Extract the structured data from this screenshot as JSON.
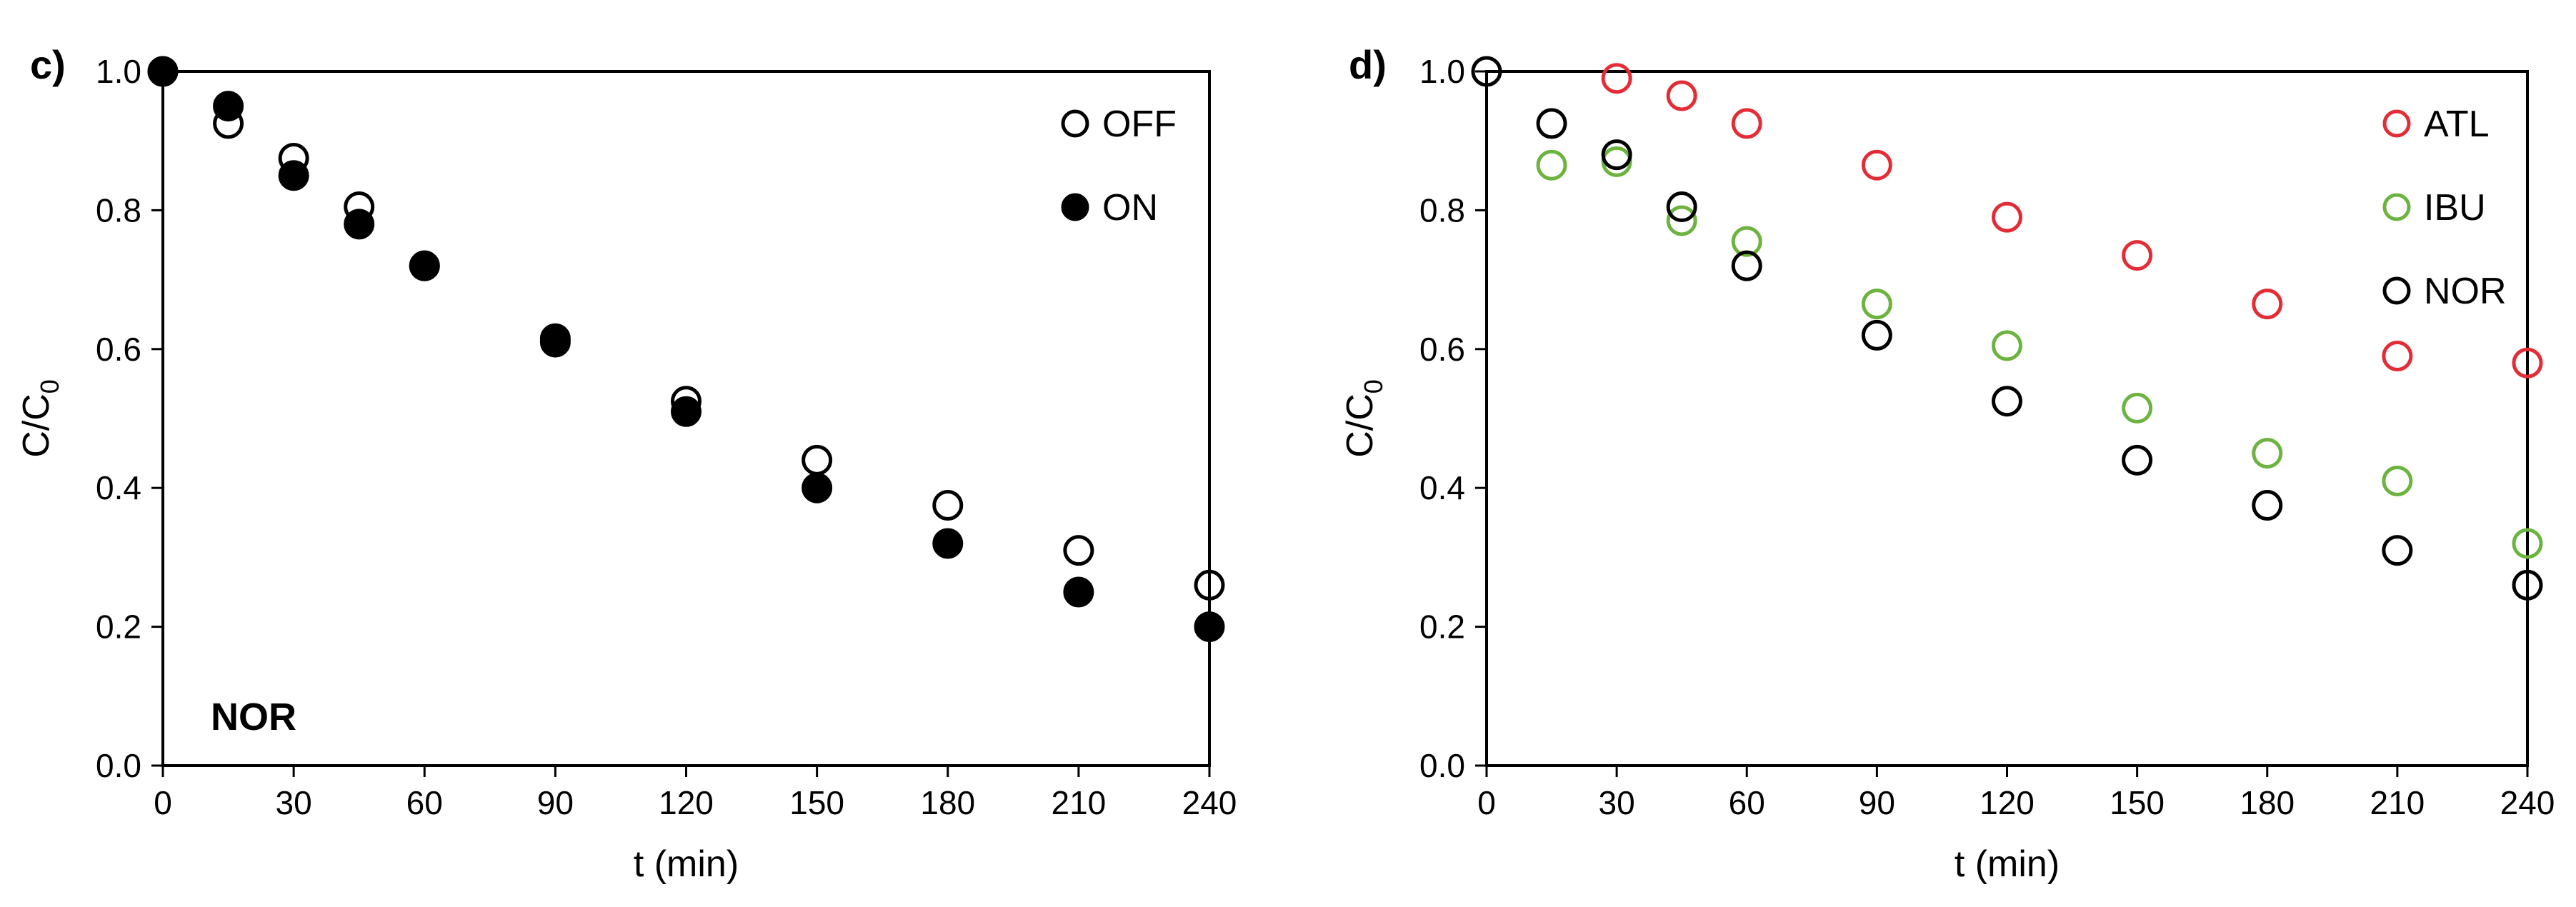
{
  "chart_data": [
    {
      "type": "scatter",
      "panel_label": "c)",
      "annotation": "NOR",
      "xlabel": "t (min)",
      "ylabel_main": "C/C",
      "ylabel_sub": "0",
      "xlim": [
        0,
        240
      ],
      "ylim": [
        0.0,
        1.0
      ],
      "xticks": [
        "0",
        "30",
        "60",
        "90",
        "120",
        "150",
        "180",
        "210",
        "240"
      ],
      "yticks": [
        "0.0",
        "0.2",
        "0.4",
        "0.6",
        "0.8",
        "1.0"
      ],
      "grid": false,
      "legend_position": "top-right",
      "series": [
        {
          "name": "OFF",
          "marker": "open-circle",
          "color": "#000000",
          "points": [
            [
              0,
              1.0
            ],
            [
              15,
              0.925
            ],
            [
              30,
              0.875
            ],
            [
              45,
              0.805
            ],
            [
              60,
              0.72
            ],
            [
              90,
              0.615
            ],
            [
              120,
              0.525
            ],
            [
              150,
              0.44
            ],
            [
              180,
              0.375
            ],
            [
              210,
              0.31
            ],
            [
              240,
              0.26
            ]
          ]
        },
        {
          "name": "ON",
          "marker": "filled-circle",
          "color": "#000000",
          "points": [
            [
              0,
              1.0
            ],
            [
              15,
              0.95
            ],
            [
              30,
              0.85
            ],
            [
              45,
              0.78
            ],
            [
              60,
              0.72
            ],
            [
              90,
              0.61
            ],
            [
              120,
              0.51
            ],
            [
              150,
              0.4
            ],
            [
              180,
              0.32
            ],
            [
              210,
              0.25
            ],
            [
              240,
              0.2
            ]
          ]
        }
      ]
    },
    {
      "type": "scatter",
      "panel_label": "d)",
      "xlabel": "t (min)",
      "ylabel_main": "C/C",
      "ylabel_sub": "0",
      "xlim": [
        0,
        240
      ],
      "ylim": [
        0.0,
        1.0
      ],
      "xticks": [
        "0",
        "30",
        "60",
        "90",
        "120",
        "150",
        "180",
        "210",
        "240"
      ],
      "yticks": [
        "0.0",
        "0.2",
        "0.4",
        "0.6",
        "0.8",
        "1.0"
      ],
      "grid": false,
      "legend_position": "top-right",
      "series": [
        {
          "name": "ATL",
          "marker": "open-circle",
          "color": "#e32c35",
          "points": [
            [
              30,
              0.99
            ],
            [
              45,
              0.965
            ],
            [
              60,
              0.925
            ],
            [
              90,
              0.865
            ],
            [
              120,
              0.79
            ],
            [
              150,
              0.735
            ],
            [
              180,
              0.665
            ],
            [
              210,
              0.59
            ],
            [
              240,
              0.58
            ]
          ]
        },
        {
          "name": "IBU",
          "marker": "open-circle",
          "color": "#6cb33f",
          "points": [
            [
              15,
              0.865
            ],
            [
              30,
              0.87
            ],
            [
              45,
              0.785
            ],
            [
              60,
              0.755
            ],
            [
              90,
              0.665
            ],
            [
              120,
              0.605
            ],
            [
              150,
              0.515
            ],
            [
              180,
              0.45
            ],
            [
              210,
              0.41
            ],
            [
              240,
              0.32
            ]
          ]
        },
        {
          "name": "NOR",
          "marker": "open-circle",
          "color": "#000000",
          "points": [
            [
              0,
              1.0
            ],
            [
              15,
              0.925
            ],
            [
              30,
              0.88
            ],
            [
              45,
              0.805
            ],
            [
              60,
              0.72
            ],
            [
              90,
              0.62
            ],
            [
              120,
              0.525
            ],
            [
              150,
              0.44
            ],
            [
              180,
              0.375
            ],
            [
              210,
              0.31
            ],
            [
              240,
              0.26
            ]
          ]
        }
      ]
    }
  ]
}
